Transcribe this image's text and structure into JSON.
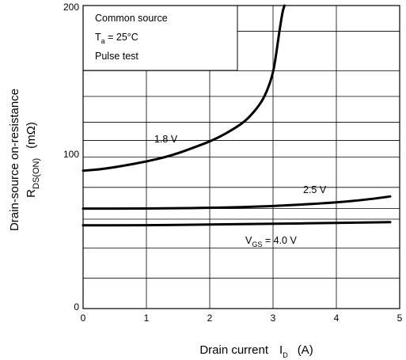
{
  "chart_data": {
    "type": "line",
    "xlabel": {
      "main": "Drain current",
      "sym": "I",
      "sub": "D",
      "unit": "(A)"
    },
    "ylabel": {
      "line1": "Drain-source on-resistance",
      "sym": "R",
      "sub": "DS(ON)",
      "unit": "(mΩ)"
    },
    "xlim": [
      0,
      5
    ],
    "ylim": [
      0,
      200
    ],
    "x_ticks": [
      "0",
      "1",
      "2",
      "3",
      "4",
      "5"
    ],
    "y_ticks": [
      "0",
      "100",
      "200"
    ],
    "grid": true,
    "conditions": {
      "line1": "Common source",
      "line2_sym": "T",
      "line2_sub": "a",
      "line2_rest": " = 25°C",
      "line3": "Pulse test"
    },
    "series": [
      {
        "name": "1.8 V",
        "x": [
          0,
          0.3,
          0.6,
          1.0,
          1.4,
          1.8,
          2.1,
          2.4,
          2.6,
          2.8,
          2.9,
          3.0,
          3.05,
          3.1,
          3.15,
          3.18
        ],
        "y": [
          91,
          92,
          94,
          97,
          101,
          107,
          112,
          119,
          125,
          135,
          143,
          155,
          168,
          183,
          196,
          200
        ]
      },
      {
        "name": "2.5 V",
        "x": [
          0,
          1,
          2,
          3,
          4,
          4.5,
          4.85
        ],
        "y": [
          66,
          66,
          66.5,
          67.5,
          70,
          72,
          74
        ]
      },
      {
        "name": "4.0 V",
        "label_sym": "V",
        "label_sub": "GS",
        "label_rest": " = 4.0 V",
        "x": [
          0,
          1,
          2,
          3,
          4,
          4.85
        ],
        "y": [
          55,
          55,
          55.5,
          56,
          56.5,
          57
        ]
      }
    ]
  }
}
